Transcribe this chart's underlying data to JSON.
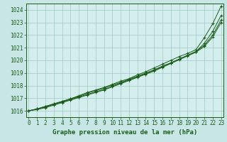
{
  "title": "Graphe pression niveau de la mer (hPa)",
  "background_color": "#c8e6e6",
  "plot_bg_color": "#d4eded",
  "grid_color": "#a0c8c8",
  "line_color": "#1a5c1a",
  "x_ticks": [
    0,
    1,
    2,
    3,
    4,
    5,
    6,
    7,
    8,
    9,
    10,
    11,
    12,
    13,
    14,
    15,
    16,
    17,
    18,
    19,
    20,
    21,
    22,
    23
  ],
  "ylim": [
    1015.5,
    1024.5
  ],
  "xlim": [
    -0.3,
    23.3
  ],
  "yticks": [
    1016,
    1017,
    1018,
    1019,
    1020,
    1021,
    1022,
    1023,
    1024
  ],
  "series": [
    [
      1016.0,
      1016.15,
      1016.35,
      1016.55,
      1016.75,
      1016.95,
      1017.2,
      1017.45,
      1017.65,
      1017.85,
      1018.1,
      1018.35,
      1018.55,
      1018.85,
      1019.1,
      1019.4,
      1019.7,
      1020.0,
      1020.3,
      1020.55,
      1020.85,
      1021.8,
      1022.9,
      1024.3
    ],
    [
      1016.0,
      1016.15,
      1016.35,
      1016.55,
      1016.75,
      1016.95,
      1017.15,
      1017.4,
      1017.6,
      1017.8,
      1018.05,
      1018.25,
      1018.5,
      1018.75,
      1019.0,
      1019.25,
      1019.55,
      1019.8,
      1020.1,
      1020.4,
      1020.7,
      1021.35,
      1022.3,
      1023.55
    ],
    [
      1016.0,
      1016.15,
      1016.3,
      1016.5,
      1016.7,
      1016.9,
      1017.1,
      1017.3,
      1017.5,
      1017.7,
      1017.95,
      1018.2,
      1018.45,
      1018.7,
      1018.95,
      1019.2,
      1019.5,
      1019.8,
      1020.1,
      1020.4,
      1020.7,
      1021.2,
      1022.0,
      1023.2
    ],
    [
      1016.0,
      1016.1,
      1016.25,
      1016.45,
      1016.65,
      1016.85,
      1017.05,
      1017.25,
      1017.45,
      1017.65,
      1017.9,
      1018.15,
      1018.4,
      1018.65,
      1018.9,
      1019.15,
      1019.45,
      1019.75,
      1020.05,
      1020.35,
      1020.65,
      1021.1,
      1021.85,
      1023.0
    ]
  ]
}
